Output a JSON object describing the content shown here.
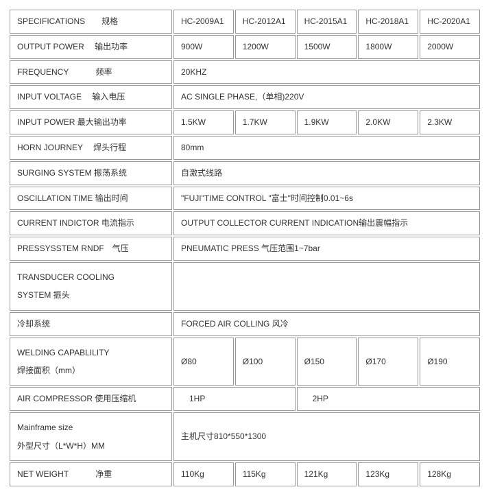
{
  "rows": {
    "specifications": {
      "label": "SPECIFICATIONS　　规格",
      "c1": "HC-2009A1",
      "c2": "HC-2012A1",
      "c3": "HC-2015A1",
      "c4": "HC-2018A1",
      "c5": "HC-2020A1"
    },
    "outputPower": {
      "label": "OUTPUT POWER　 输出功率",
      "c1": "900W",
      "c2": "1200W",
      "c3": "1500W",
      "c4": "1800W",
      "c5": " 2000W"
    },
    "frequency": {
      "label": "FREQUENCY　　　  频率",
      "value": "20KHZ"
    },
    "inputVoltage": {
      "label": "INPUT VOLTAGE　 输入电压",
      "value": "AC SINGLE PHASE,（单相)220V"
    },
    "inputPower": {
      "label": "INPUT POWER   最大输出功率",
      "c1": "1.5KW",
      "c2": "1.7KW",
      "c3": "1.9KW",
      "c4": "2.0KW",
      "c5": "2.3KW"
    },
    "hornJourney": {
      "label": "HORN JOURNEY　 焊头行程",
      "value": "80mm"
    },
    "surgingSystem": {
      "label": "SURGING SYSTEM   振荡系统",
      "value": "自激式线路"
    },
    "oscillationTime": {
      "label": "OSCILLATION TIME   输出时间",
      "value": "\"FUJI\"TIME CONTROL \"富士\"时间控制0.01~6s"
    },
    "currentIndictor": {
      "label": "CURRENT INDICTOR 电流指示",
      "value": "OUTPUT COLLECTOR CURRENT INDICATION输出震幅指示"
    },
    "pressSystem": {
      "label": "PRESSYSSTEM RNDF　气压",
      "value": "PNEUMATIC PRESS 气压范围1~7bar"
    },
    "transducerCooling": {
      "label": "TRANSDUCER COOLING\n SYSTEM 振头",
      "value": ""
    },
    "coolingSystem": {
      "label": "冷却系统",
      "value": "FORCED AIR COLLING 风冷"
    },
    "weldingCapability": {
      "label": "WELDING CAPABLILITY\n焊接面积（mm）",
      "c1": "Ø80",
      "c2": "Ø100",
      "c3": "Ø150",
      "c4": "Ø170",
      "c5": "Ø190"
    },
    "airCompressor": {
      "label": "AIR COMPRESSOR 使用压缩机",
      "c1": "　1HP",
      "c2": "　2HP"
    },
    "mainframeSize": {
      "label": "Mainframe size\n外型尺寸（L*W*H）MM",
      "value": "主机尺寸810*550*1300"
    },
    "netWeight": {
      "label": "NET WEIGHT　　　   净重",
      "c1": "110Kg",
      "c2": "115Kg",
      "c3": "121Kg",
      "c4": "123Kg",
      "c5": "128Kg"
    }
  },
  "columnWidths": {
    "label": 215,
    "col": 88
  }
}
